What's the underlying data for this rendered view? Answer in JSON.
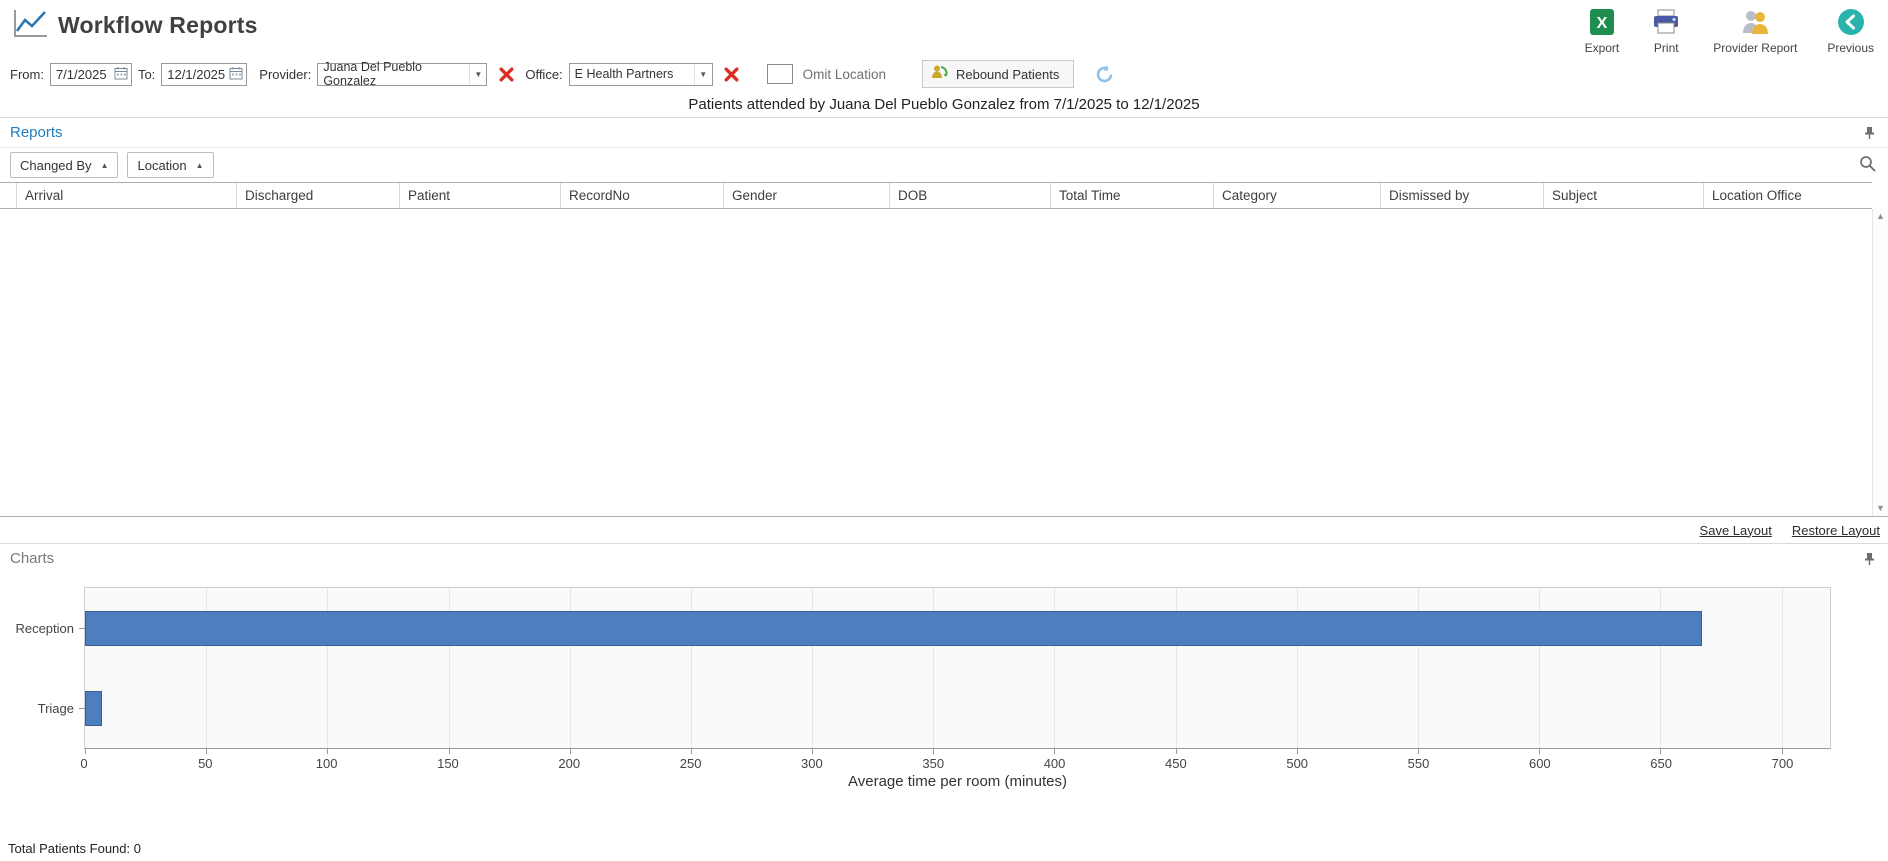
{
  "header": {
    "title": "Workflow Reports",
    "actions": [
      {
        "name": "export",
        "label": "Export"
      },
      {
        "name": "print",
        "label": "Print"
      },
      {
        "name": "provider-report",
        "label": "Provider Report"
      },
      {
        "name": "previous",
        "label": "Previous"
      }
    ]
  },
  "filters": {
    "from_label": "From:",
    "from_value": "7/1/2025",
    "to_label": "To:",
    "to_value": "12/1/2025",
    "provider_label": "Provider:",
    "provider_value": "Juana Del Pueblo Gonzalez",
    "office_label": "Office:",
    "office_value": "E Health Partners",
    "omit_location_label": "Omit Location",
    "omit_location_checked": false,
    "rebound_label": "Rebound Patients"
  },
  "summary_line": "Patients attended  by Juana Del Pueblo Gonzalez from 7/1/2025 to 12/1/2025",
  "reports_panel": {
    "title": "Reports",
    "group_by": [
      "Changed By",
      "Location"
    ],
    "columns": [
      "Arrival",
      "Discharged",
      "Patient",
      "RecordNo",
      "Gender",
      "DOB",
      "Total Time",
      "Category",
      "Dismissed by",
      "Subject",
      "Location Office"
    ],
    "rows": [],
    "save_layout_label": "Save Layout",
    "restore_layout_label": "Restore Layout"
  },
  "charts_panel": {
    "title": "Charts"
  },
  "chart_data": {
    "type": "bar",
    "orientation": "horizontal",
    "categories": [
      "Reception",
      "Triage"
    ],
    "values": [
      667,
      7
    ],
    "xlabel": "Average time per room (minutes)",
    "xticks": [
      0,
      50,
      100,
      150,
      200,
      250,
      300,
      350,
      400,
      450,
      500,
      550,
      600,
      650,
      700
    ],
    "xlim": [
      0,
      720
    ],
    "grid": true,
    "legend": false,
    "bar_color": "#4d7ebf",
    "bar_border_color": "#3a5f98"
  },
  "footer": {
    "total_label": "Total Patients Found: 0"
  },
  "icons": {
    "logo": "line-chart-icon",
    "export": "excel-icon",
    "print": "printer-icon",
    "provider_report": "people-icon",
    "previous": "back-arrow-icon",
    "calendar": "calendar-icon",
    "clear": "red-x-icon",
    "rebound": "patient-refresh-icon",
    "refresh": "refresh-icon",
    "pin": "pin-icon",
    "search": "search-icon",
    "dropdown": "chevron-down-icon",
    "group_sort": "chevron-up-icon",
    "scroll_up": "scroll-up-arrow-icon",
    "scroll_down": "scroll-down-arrow-icon"
  },
  "colors": {
    "accent_blue": "#217dc0",
    "bar_fill": "#4d7ebf",
    "bar_border": "#3a5f98",
    "red_clear": "#d93025",
    "excel_green": "#1e8e4e",
    "previous_teal": "#2ab3ad"
  }
}
